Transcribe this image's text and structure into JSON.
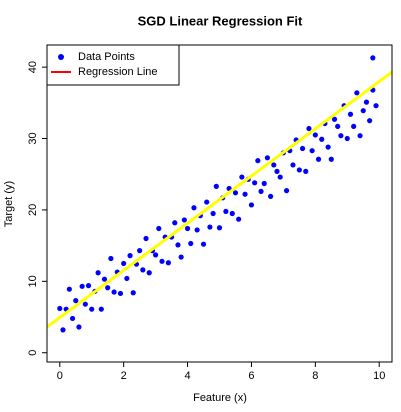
{
  "chart_data": {
    "type": "scatter",
    "title": "SGD Linear Regression Fit",
    "x_label": "Feature (x)",
    "y_label": "Target (y)",
    "xlim": [
      -0.4,
      10.4
    ],
    "ylim": [
      -1.3,
      43.1
    ],
    "xticks": [
      0,
      2,
      4,
      6,
      8,
      10
    ],
    "yticks": [
      0,
      10,
      20,
      30,
      40
    ],
    "grid": false,
    "legend": "top-left",
    "series": [
      {
        "name": "Data Points",
        "color": "#0000ff",
        "kind": "points",
        "x": [
          0,
          0.1,
          0.2,
          0.3,
          0.4,
          0.5,
          0.6,
          0.7,
          0.8,
          0.9,
          1,
          1.1,
          1.2,
          1.3,
          1.4,
          1.5,
          1.6,
          1.7,
          1.8,
          1.9,
          2,
          2.1,
          2.2,
          2.3,
          2.4,
          2.5,
          2.6,
          2.7,
          2.8,
          2.9,
          3,
          3.1,
          3.2,
          3.3,
          3.4,
          3.5,
          3.6,
          3.7,
          3.8,
          3.9,
          4,
          4.1,
          4.2,
          4.3,
          4.4,
          4.5,
          4.6,
          4.7,
          4.8,
          4.9,
          5,
          5.1,
          5.2,
          5.3,
          5.4,
          5.5,
          5.6,
          5.7,
          5.8,
          5.9,
          6,
          6.1,
          6.2,
          6.3,
          6.4,
          6.5,
          6.6,
          6.7,
          6.8,
          6.9,
          7,
          7.1,
          7.2,
          7.3,
          7.4,
          7.5,
          7.6,
          7.7,
          7.8,
          7.9,
          8,
          8.1,
          8.2,
          8.3,
          8.4,
          8.5,
          8.6,
          8.7,
          8.8,
          8.9,
          9,
          9.1,
          9.2,
          9.3,
          9.4,
          9.5,
          9.6,
          9.7,
          9.8,
          9.9,
          9.8
        ],
        "values": [
          6.2,
          3.2,
          6.1,
          8.9,
          4.8,
          7.3,
          3.6,
          9.3,
          6.8,
          9.4,
          6.1,
          8.6,
          11.2,
          6.1,
          10.3,
          9.1,
          13.2,
          8.5,
          11.3,
          8.3,
          12.5,
          10.4,
          13.6,
          8.4,
          12.4,
          14.3,
          11.6,
          16.0,
          11.2,
          14.3,
          13.7,
          17.4,
          12.8,
          16.2,
          12.6,
          16.2,
          18.2,
          15.1,
          13.4,
          18.6,
          17.4,
          15.3,
          20.3,
          17.2,
          19.2,
          15.2,
          21.1,
          17.6,
          19.5,
          23.3,
          17.5,
          21.7,
          19.8,
          23.0,
          19.5,
          22.4,
          18.7,
          24.6,
          22.2,
          24.3,
          20.7,
          23.8,
          26.9,
          22.6,
          23.7,
          27.3,
          21.9,
          26.3,
          25.4,
          24.6,
          28.0,
          22.7,
          28.3,
          26.3,
          29.8,
          25.6,
          28.6,
          25.4,
          31.4,
          28.3,
          30.5,
          27.1,
          29.9,
          32.1,
          28.8,
          27.1,
          32.7,
          31.7,
          30.4,
          34.6,
          30.0,
          33.4,
          31.7,
          36.4,
          30.4,
          33.9,
          35.1,
          32.5,
          36.8,
          34.6,
          41.3
        ]
      },
      {
        "name": "Regression Line",
        "color": "#ffff00",
        "legend_color": "#ff0000",
        "kind": "line",
        "x": [
          -0.4,
          10.4
        ],
        "values": [
          3.6,
          39.3
        ]
      }
    ]
  }
}
